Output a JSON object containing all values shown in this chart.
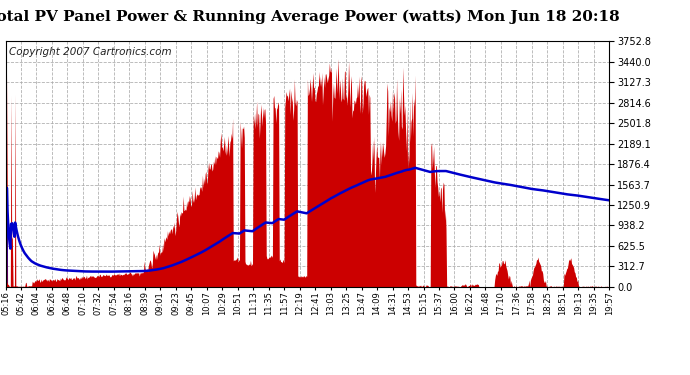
{
  "title": "Total PV Panel Power & Running Average Power (watts) Mon Jun 18 20:18",
  "copyright": "Copyright 2007 Cartronics.com",
  "y_ticks": [
    0.0,
    312.7,
    625.5,
    938.2,
    1250.9,
    1563.7,
    1876.4,
    2189.1,
    2501.8,
    2814.6,
    3127.3,
    3440.0,
    3752.8
  ],
  "y_max": 3752.8,
  "y_min": 0.0,
  "x_labels": [
    "05:16",
    "05:42",
    "06:04",
    "06:26",
    "06:48",
    "07:10",
    "07:32",
    "07:54",
    "08:16",
    "08:39",
    "09:01",
    "09:23",
    "09:45",
    "10:07",
    "10:29",
    "10:51",
    "11:13",
    "11:35",
    "11:57",
    "12:19",
    "12:41",
    "13:03",
    "13:25",
    "13:47",
    "14:09",
    "14:31",
    "14:53",
    "15:15",
    "15:37",
    "16:00",
    "16:22",
    "16:48",
    "17:10",
    "17:36",
    "17:58",
    "18:25",
    "18:51",
    "19:13",
    "19:35",
    "19:57"
  ],
  "bar_color": "#cc0000",
  "line_color": "#0000cc",
  "background_color": "#ffffff",
  "grid_color": "#aaaaaa",
  "title_fontsize": 11,
  "copyright_fontsize": 7.5
}
